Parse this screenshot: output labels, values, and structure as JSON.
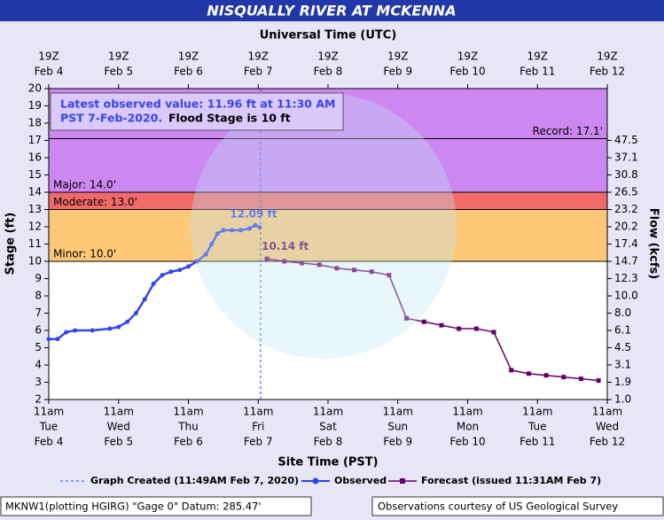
{
  "chart_data": {
    "type": "hydrograph",
    "title": "NISQUALLY RIVER AT MCKENNA",
    "top_axis_label": "Universal Time (UTC)",
    "x_label": "Site Time (PST)",
    "y_label": "Stage (ft)",
    "y2_label": "Flow (kcfs)",
    "xlim": [
      "Feb 4 11:00",
      "Feb 12 11:00"
    ],
    "top_ticks": [
      {
        "time": "19Z",
        "date": "Feb 4"
      },
      {
        "time": "19Z",
        "date": "Feb 5"
      },
      {
        "time": "19Z",
        "date": "Feb 6"
      },
      {
        "time": "19Z",
        "date": "Feb 7"
      },
      {
        "time": "19Z",
        "date": "Feb 8"
      },
      {
        "time": "19Z",
        "date": "Feb 9"
      },
      {
        "time": "19Z",
        "date": "Feb 10"
      },
      {
        "time": "19Z",
        "date": "Feb 11"
      },
      {
        "time": "19Z",
        "date": "Feb 12"
      }
    ],
    "bottom_ticks": [
      {
        "time": "11am",
        "day": "Tue",
        "date": "Feb 4"
      },
      {
        "time": "11am",
        "day": "Wed",
        "date": "Feb 5"
      },
      {
        "time": "11am",
        "day": "Thu",
        "date": "Feb 6"
      },
      {
        "time": "11am",
        "day": "Fri",
        "date": "Feb 7"
      },
      {
        "time": "11am",
        "day": "Sat",
        "date": "Feb 8"
      },
      {
        "time": "11am",
        "day": "Sun",
        "date": "Feb 9"
      },
      {
        "time": "11am",
        "day": "Mon",
        "date": "Feb 10"
      },
      {
        "time": "11am",
        "day": "Tue",
        "date": "Feb 11"
      },
      {
        "time": "11am",
        "day": "Wed",
        "date": "Feb 12"
      }
    ],
    "ylim": [
      2,
      20
    ],
    "yticks": [
      2,
      3,
      4,
      5,
      6,
      7,
      8,
      9,
      10,
      11,
      12,
      13,
      14,
      15,
      16,
      17,
      18,
      19,
      20
    ],
    "y2ticks": [
      {
        "value": 1,
        "label": "1.0"
      },
      1.9,
      3.1,
      4.5,
      6.1,
      {
        "value": 8,
        "label": "8.0"
      },
      {
        "value": 10,
        "label": "10.0"
      },
      12.3,
      14.7,
      17.4,
      20.2,
      23.2,
      26.5,
      30.8,
      37.1,
      47.5
    ],
    "thresholds": [
      {
        "label": "Record: 17.1'",
        "value": 17.1
      },
      {
        "label": "Major: 14.0'",
        "value": 14,
        "color": "#cc88f0"
      },
      {
        "label": "Moderate: 13.0'",
        "value": 13,
        "color": "#f26a6a"
      },
      {
        "label": "Minor: 10.0'",
        "value": 10,
        "color": "#fdc877"
      }
    ],
    "series": [
      {
        "name": "Observed",
        "color": "#3344ee",
        "x": [
          "Feb 4 11:00",
          "Feb 4 14:00",
          "Feb 4 17:00",
          "Feb 4 20:00",
          "Feb 5 02:00",
          "Feb 5 08:00",
          "Feb 5 11:00",
          "Feb 5 14:00",
          "Feb 5 17:00",
          "Feb 5 20:00",
          "Feb 5 23:00",
          "Feb 6 02:00",
          "Feb 6 05:00",
          "Feb 6 08:00",
          "Feb 6 11:00",
          "Feb 6 14:00",
          "Feb 6 17:00",
          "Feb 6 19:00",
          "Feb 6 21:00",
          "Feb 6 23:00",
          "Feb 7 02:00",
          "Feb 7 05:00",
          "Feb 7 08:00",
          "Feb 7 10:00",
          "Feb 7 11:30"
        ],
        "values": [
          5.5,
          5.5,
          5.9,
          6.0,
          6.0,
          6.1,
          6.2,
          6.5,
          7.0,
          7.8,
          8.7,
          9.2,
          9.4,
          9.5,
          9.7,
          10.0,
          10.4,
          11.0,
          11.6,
          11.8,
          11.8,
          11.8,
          11.9,
          12.09,
          11.96
        ]
      },
      {
        "name": "Forecast (issued 11:31AM Feb 7)",
        "color": "#660066",
        "x": [
          "Feb 7 14:00",
          "Feb 7 20:00",
          "Feb 8 02:00",
          "Feb 8 08:00",
          "Feb 8 14:00",
          "Feb 8 20:00",
          "Feb 9 02:00",
          "Feb 9 08:00",
          "Feb 9 14:00",
          "Feb 9 20:00",
          "Feb 10 02:00",
          "Feb 10 08:00",
          "Feb 10 14:00",
          "Feb 10 20:00",
          "Feb 11 02:00",
          "Feb 11 08:00",
          "Feb 11 14:00",
          "Feb 11 20:00",
          "Feb 12 02:00",
          "Feb 12 08:00"
        ],
        "values": [
          10.14,
          10.0,
          9.9,
          9.8,
          9.6,
          9.5,
          9.4,
          9.2,
          6.7,
          6.5,
          6.3,
          6.1,
          6.1,
          5.9,
          3.7,
          3.5,
          3.4,
          3.3,
          3.2,
          3.1
        ]
      }
    ],
    "peak_label": {
      "text": "12.09 ft",
      "value": 12.09
    },
    "forecast_label": {
      "text": "10.14 ft",
      "value": 10.14
    },
    "latest_text_1": "Latest observed value: 11.96 ft at 11:30 AM",
    "latest_text_2": "PST 7-Feb-2020.",
    "flood_text": "Flood Stage is 10 ft",
    "created": {
      "label": "Graph Created (11:49AM Feb 7, 2020)",
      "x": "Feb 7 11:49"
    },
    "footer_left": "MKNW1(plotting HGIRG) \"Gage 0\" Datum: 285.47'",
    "footer_right": "Observations courtesy of US Geological Survey"
  }
}
